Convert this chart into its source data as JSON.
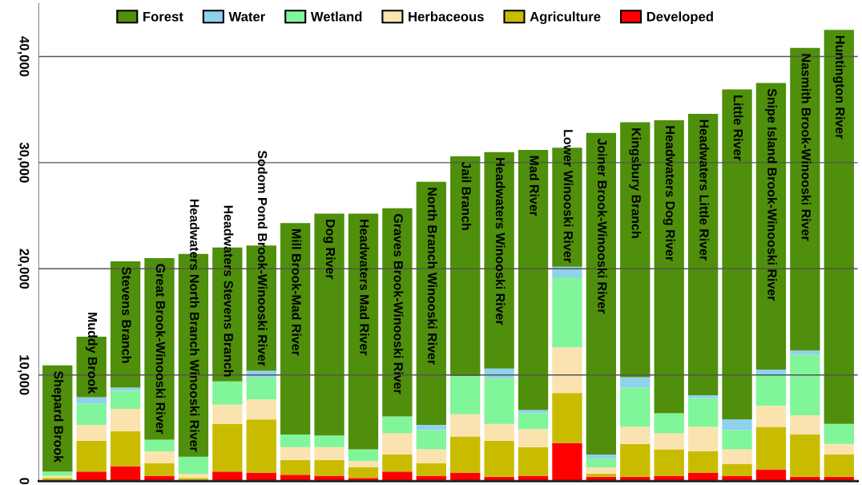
{
  "chart_data": {
    "type": "bar",
    "stacked": true,
    "categories": [
      "Shepard Brook",
      "Muddy Brook",
      "Stevens Branch",
      "Great Brook-Winooski River",
      "Headwaters North Branch Winooski River",
      "Headwaters Stevens Branch",
      "Sodom Pond Brook-Winooski River",
      "Mill Brook-Mad River",
      "Dog River",
      "Headwaters Mad River",
      "Graves Brook-Winooski River",
      "North Branch Winooski River",
      "Jail Branch",
      "Headwaters Winooski River",
      "Mad River",
      "Lower Winooski River",
      "Joiner Brook-Winooski River",
      "Kingsbury Branch",
      "Headwaters Dog River",
      "Headwaters Little River",
      "Little River",
      "Snipe Island Brook-Winooski River",
      "Nasmith Brook-Winooski River",
      "Huntington River"
    ],
    "series": [
      {
        "name": "Developed",
        "color": "#ff0000",
        "values": [
          null,
          900,
          1400,
          500,
          null,
          900,
          800,
          600,
          500,
          300,
          900,
          500,
          800,
          400,
          500,
          3600,
          400,
          400,
          500,
          800,
          500,
          1100,
          400,
          400
        ]
      },
      {
        "name": "Agriculture",
        "color": "#c9bc00",
        "values": [
          300,
          2900,
          3300,
          1200,
          300,
          4500,
          5000,
          1400,
          1500,
          1000,
          1600,
          1200,
          3400,
          3400,
          2700,
          4700,
          300,
          3100,
          2500,
          2000,
          1100,
          4000,
          4000,
          2100
        ]
      },
      {
        "name": "Herbaceous",
        "color": "#fbe3b0",
        "values": [
          200,
          1500,
          2100,
          1100,
          400,
          1800,
          1900,
          1200,
          1200,
          600,
          2000,
          1300,
          2100,
          1600,
          1700,
          4300,
          600,
          1600,
          1500,
          2300,
          1400,
          2000,
          1800,
          1000
        ]
      },
      {
        "name": "Wetland",
        "color": "#80f59a",
        "values": [
          400,
          2000,
          1700,
          1100,
          1600,
          2200,
          2100,
          1200,
          1100,
          1100,
          1600,
          1800,
          3600,
          4300,
          1500,
          6600,
          800,
          3700,
          1900,
          2700,
          1800,
          2900,
          5700,
          1900
        ]
      },
      {
        "name": "Water",
        "color": "#8fd2ee",
        "values": [
          0,
          600,
          300,
          0,
          0,
          0,
          600,
          0,
          0,
          0,
          0,
          500,
          0,
          900,
          300,
          1000,
          400,
          1000,
          0,
          300,
          1000,
          500,
          400,
          0
        ]
      },
      {
        "name": "Forest",
        "color": "#4f8f0c",
        "values": [
          10000,
          5700,
          11900,
          17100,
          19100,
          12600,
          11800,
          19900,
          20900,
          22200,
          19600,
          22900,
          20700,
          20400,
          24500,
          11200,
          30300,
          24000,
          27600,
          26500,
          31100,
          27000,
          28500,
          37100
        ]
      }
    ],
    "ylim": [
      0,
      45000
    ],
    "yticks": [
      {
        "value": 0,
        "label": "0"
      },
      {
        "value": 10000,
        "label": "10,000"
      },
      {
        "value": 20000,
        "label": "20,000"
      },
      {
        "value": 30000,
        "label": "30,000"
      },
      {
        "value": 40000,
        "label": "40,000"
      }
    ],
    "grid": "y",
    "legend": "top"
  }
}
